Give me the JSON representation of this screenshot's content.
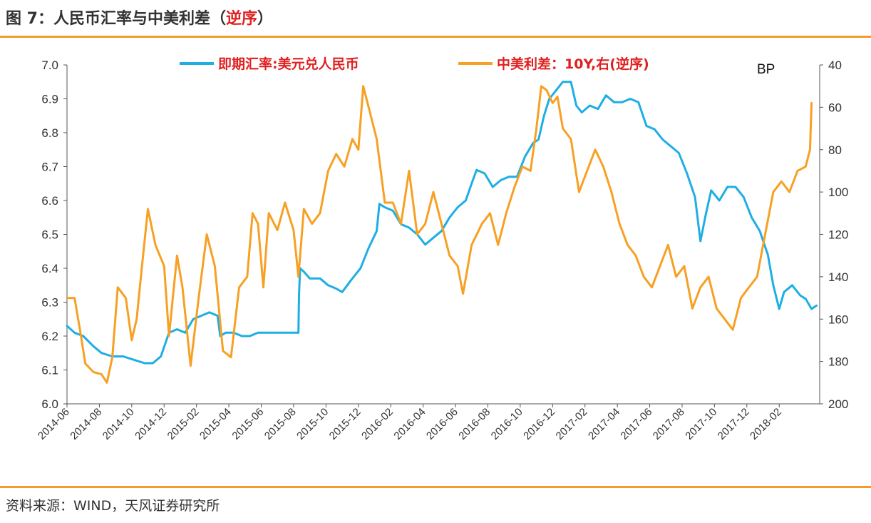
{
  "header": {
    "title_main": "图 7：人民币汇率与中美利差（",
    "title_highlight": "逆序",
    "title_end": "）"
  },
  "footer": {
    "source": "资料来源：WIND，天风证券研究所"
  },
  "colors": {
    "spot": "#1eaee5",
    "spread": "#f7a023",
    "rule": "#f39b2c",
    "legend_text": "#e0201f"
  },
  "chart_data": {
    "type": "line",
    "title": "人民币汇率与中美利差（逆序）",
    "x_ticks": [
      "2014-06",
      "2014-08",
      "2014-10",
      "2014-12",
      "2015-02",
      "2015-04",
      "2015-06",
      "2015-08",
      "2015-10",
      "2015-12",
      "2016-02",
      "2016-04",
      "2016-06",
      "2016-08",
      "2016-10",
      "2016-12",
      "2017-02",
      "2017-04",
      "2017-06",
      "2017-08",
      "2017-10",
      "2017-12",
      "2018-02"
    ],
    "x_range": [
      "2014-06",
      "2018-04"
    ],
    "y_left": {
      "min": 6.0,
      "max": 7.0,
      "ticks": [
        "6.0",
        "6.1",
        "6.2",
        "6.3",
        "6.4",
        "6.5",
        "6.6",
        "6.7",
        "6.8",
        "6.9",
        "7.0"
      ]
    },
    "y_right": {
      "min": 40,
      "max": 200,
      "inverted": true,
      "label": "BP",
      "ticks": [
        "40",
        "60",
        "80",
        "100",
        "120",
        "140",
        "160",
        "180",
        "200"
      ]
    },
    "legend": [
      "即期汇率:美元兑人民币",
      "中美利差：10Y,右(逆序)"
    ],
    "series": [
      {
        "name": "即期汇率:美元兑人民币",
        "axis": "left",
        "points": [
          [
            "2014-06-01",
            6.23
          ],
          [
            "2014-06-15",
            6.21
          ],
          [
            "2014-07-01",
            6.2
          ],
          [
            "2014-07-20",
            6.17
          ],
          [
            "2014-08-05",
            6.15
          ],
          [
            "2014-08-25",
            6.14
          ],
          [
            "2014-09-15",
            6.14
          ],
          [
            "2014-10-05",
            6.13
          ],
          [
            "2014-10-25",
            6.12
          ],
          [
            "2014-11-10",
            6.12
          ],
          [
            "2014-11-25",
            6.14
          ],
          [
            "2014-12-10",
            6.21
          ],
          [
            "2014-12-25",
            6.22
          ],
          [
            "2015-01-10",
            6.21
          ],
          [
            "2015-01-25",
            6.25
          ],
          [
            "2015-02-10",
            6.26
          ],
          [
            "2015-02-25",
            6.27
          ],
          [
            "2015-03-10",
            6.26
          ],
          [
            "2015-03-15",
            6.2
          ],
          [
            "2015-03-25",
            6.21
          ],
          [
            "2015-04-10",
            6.21
          ],
          [
            "2015-04-25",
            6.2
          ],
          [
            "2015-05-10",
            6.2
          ],
          [
            "2015-05-25",
            6.21
          ],
          [
            "2015-06-10",
            6.21
          ],
          [
            "2015-07-10",
            6.21
          ],
          [
            "2015-08-10",
            6.21
          ],
          [
            "2015-08-11",
            6.32
          ],
          [
            "2015-08-13",
            6.4
          ],
          [
            "2015-08-20",
            6.39
          ],
          [
            "2015-09-01",
            6.37
          ],
          [
            "2015-09-20",
            6.37
          ],
          [
            "2015-10-05",
            6.35
          ],
          [
            "2015-10-20",
            6.34
          ],
          [
            "2015-11-01",
            6.33
          ],
          [
            "2015-11-20",
            6.37
          ],
          [
            "2015-12-05",
            6.4
          ],
          [
            "2015-12-20",
            6.46
          ],
          [
            "2016-01-05",
            6.51
          ],
          [
            "2016-01-10",
            6.59
          ],
          [
            "2016-01-20",
            6.58
          ],
          [
            "2016-02-05",
            6.57
          ],
          [
            "2016-02-20",
            6.53
          ],
          [
            "2016-03-05",
            6.52
          ],
          [
            "2016-03-20",
            6.5
          ],
          [
            "2016-04-05",
            6.47
          ],
          [
            "2016-04-20",
            6.49
          ],
          [
            "2016-05-05",
            6.51
          ],
          [
            "2016-05-20",
            6.55
          ],
          [
            "2016-06-05",
            6.58
          ],
          [
            "2016-06-20",
            6.6
          ],
          [
            "2016-07-01",
            6.65
          ],
          [
            "2016-07-10",
            6.69
          ],
          [
            "2016-07-25",
            6.68
          ],
          [
            "2016-08-10",
            6.64
          ],
          [
            "2016-08-25",
            6.66
          ],
          [
            "2016-09-10",
            6.67
          ],
          [
            "2016-09-25",
            6.67
          ],
          [
            "2016-10-10",
            6.73
          ],
          [
            "2016-10-25",
            6.77
          ],
          [
            "2016-11-05",
            6.78
          ],
          [
            "2016-11-15",
            6.85
          ],
          [
            "2016-11-25",
            6.9
          ],
          [
            "2016-12-05",
            6.92
          ],
          [
            "2016-12-20",
            6.95
          ],
          [
            "2017-01-05",
            6.95
          ],
          [
            "2017-01-15",
            6.88
          ],
          [
            "2017-01-25",
            6.86
          ],
          [
            "2017-02-10",
            6.88
          ],
          [
            "2017-02-25",
            6.87
          ],
          [
            "2017-03-10",
            6.91
          ],
          [
            "2017-03-25",
            6.89
          ],
          [
            "2017-04-10",
            6.89
          ],
          [
            "2017-04-25",
            6.9
          ],
          [
            "2017-05-10",
            6.89
          ],
          [
            "2017-05-25",
            6.82
          ],
          [
            "2017-06-10",
            6.81
          ],
          [
            "2017-06-25",
            6.78
          ],
          [
            "2017-07-10",
            6.76
          ],
          [
            "2017-07-25",
            6.74
          ],
          [
            "2017-08-10",
            6.68
          ],
          [
            "2017-08-25",
            6.61
          ],
          [
            "2017-09-05",
            6.48
          ],
          [
            "2017-09-15",
            6.56
          ],
          [
            "2017-09-25",
            6.63
          ],
          [
            "2017-10-10",
            6.6
          ],
          [
            "2017-10-25",
            6.64
          ],
          [
            "2017-11-10",
            6.64
          ],
          [
            "2017-11-25",
            6.61
          ],
          [
            "2017-12-10",
            6.55
          ],
          [
            "2017-12-25",
            6.51
          ],
          [
            "2018-01-10",
            6.44
          ],
          [
            "2018-01-20",
            6.35
          ],
          [
            "2018-02-01",
            6.28
          ],
          [
            "2018-02-10",
            6.33
          ],
          [
            "2018-02-25",
            6.35
          ],
          [
            "2018-03-10",
            6.32
          ],
          [
            "2018-03-20",
            6.31
          ],
          [
            "2018-04-01",
            6.28
          ],
          [
            "2018-04-10",
            6.29
          ]
        ]
      },
      {
        "name": "中美利差：10Y,右(逆序)",
        "axis": "right",
        "points": [
          [
            "2014-06-01",
            150
          ],
          [
            "2014-06-15",
            150
          ],
          [
            "2014-06-25",
            165
          ],
          [
            "2014-07-05",
            181
          ],
          [
            "2014-07-20",
            185
          ],
          [
            "2014-08-05",
            186
          ],
          [
            "2014-08-15",
            190
          ],
          [
            "2014-08-25",
            178
          ],
          [
            "2014-09-05",
            145
          ],
          [
            "2014-09-20",
            150
          ],
          [
            "2014-10-01",
            170
          ],
          [
            "2014-10-10",
            160
          ],
          [
            "2014-10-20",
            135
          ],
          [
            "2014-11-01",
            108
          ],
          [
            "2014-11-15",
            125
          ],
          [
            "2014-12-01",
            135
          ],
          [
            "2014-12-10",
            168
          ],
          [
            "2014-12-25",
            130
          ],
          [
            "2015-01-05",
            145
          ],
          [
            "2015-01-20",
            182
          ],
          [
            "2015-02-05",
            150
          ],
          [
            "2015-02-20",
            120
          ],
          [
            "2015-03-05",
            135
          ],
          [
            "2015-03-20",
            175
          ],
          [
            "2015-04-05",
            178
          ],
          [
            "2015-04-20",
            145
          ],
          [
            "2015-05-05",
            140
          ],
          [
            "2015-05-15",
            110
          ],
          [
            "2015-05-25",
            115
          ],
          [
            "2015-06-05",
            145
          ],
          [
            "2015-06-15",
            110
          ],
          [
            "2015-07-01",
            118
          ],
          [
            "2015-07-15",
            105
          ],
          [
            "2015-08-01",
            118
          ],
          [
            "2015-08-10",
            140
          ],
          [
            "2015-08-20",
            108
          ],
          [
            "2015-09-05",
            115
          ],
          [
            "2015-09-20",
            110
          ],
          [
            "2015-10-05",
            90
          ],
          [
            "2015-10-20",
            82
          ],
          [
            "2015-11-05",
            88
          ],
          [
            "2015-11-20",
            75
          ],
          [
            "2015-12-01",
            80
          ],
          [
            "2015-12-10",
            50
          ],
          [
            "2015-12-20",
            60
          ],
          [
            "2016-01-05",
            75
          ],
          [
            "2016-01-20",
            105
          ],
          [
            "2016-02-05",
            105
          ],
          [
            "2016-02-20",
            115
          ],
          [
            "2016-03-05",
            90
          ],
          [
            "2016-03-20",
            120
          ],
          [
            "2016-04-05",
            115
          ],
          [
            "2016-04-20",
            100
          ],
          [
            "2016-05-05",
            115
          ],
          [
            "2016-05-20",
            130
          ],
          [
            "2016-06-05",
            135
          ],
          [
            "2016-06-15",
            148
          ],
          [
            "2016-07-01",
            125
          ],
          [
            "2016-07-20",
            115
          ],
          [
            "2016-08-05",
            110
          ],
          [
            "2016-08-20",
            125
          ],
          [
            "2016-09-05",
            110
          ],
          [
            "2016-09-20",
            98
          ],
          [
            "2016-10-05",
            88
          ],
          [
            "2016-10-20",
            90
          ],
          [
            "2016-11-01",
            70
          ],
          [
            "2016-11-10",
            50
          ],
          [
            "2016-11-20",
            52
          ],
          [
            "2016-12-01",
            58
          ],
          [
            "2016-12-10",
            55
          ],
          [
            "2016-12-20",
            70
          ],
          [
            "2017-01-05",
            75
          ],
          [
            "2017-01-20",
            100
          ],
          [
            "2017-02-05",
            90
          ],
          [
            "2017-02-20",
            80
          ],
          [
            "2017-03-05",
            88
          ],
          [
            "2017-03-20",
            100
          ],
          [
            "2017-04-05",
            115
          ],
          [
            "2017-04-20",
            125
          ],
          [
            "2017-05-05",
            130
          ],
          [
            "2017-05-20",
            140
          ],
          [
            "2017-06-05",
            145
          ],
          [
            "2017-06-20",
            135
          ],
          [
            "2017-07-05",
            125
          ],
          [
            "2017-07-20",
            140
          ],
          [
            "2017-08-05",
            135
          ],
          [
            "2017-08-20",
            155
          ],
          [
            "2017-09-05",
            145
          ],
          [
            "2017-09-20",
            140
          ],
          [
            "2017-10-05",
            155
          ],
          [
            "2017-10-20",
            160
          ],
          [
            "2017-11-05",
            165
          ],
          [
            "2017-11-20",
            150
          ],
          [
            "2017-12-05",
            145
          ],
          [
            "2017-12-20",
            140
          ],
          [
            "2018-01-05",
            120
          ],
          [
            "2018-01-20",
            100
          ],
          [
            "2018-02-05",
            95
          ],
          [
            "2018-02-20",
            100
          ],
          [
            "2018-03-05",
            90
          ],
          [
            "2018-03-20",
            88
          ],
          [
            "2018-03-28",
            80
          ],
          [
            "2018-04-01",
            58
          ]
        ]
      }
    ]
  }
}
